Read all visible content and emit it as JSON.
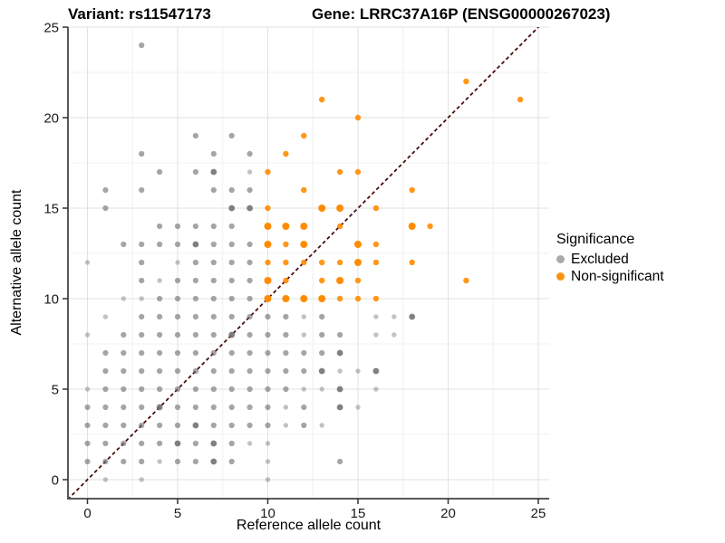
{
  "header": {
    "title_left": "Variant: rs11547173",
    "title_right": "Gene: LRRC37A16P (ENSG00000267023)"
  },
  "chart_data": {
    "type": "scatter",
    "xlabel": "Reference allele count",
    "ylabel": "Alternative allele count",
    "xlim": [
      -1.1,
      25.4
    ],
    "ylim": [
      -1.05,
      25.0
    ],
    "xticks": [
      0,
      5,
      10,
      15,
      20,
      25
    ],
    "yticks": [
      0,
      5,
      10,
      15,
      20,
      25
    ],
    "minor_ticks": [
      2.5,
      7.5,
      12.5,
      17.5,
      22.5
    ],
    "grid": "major+minor",
    "colors": {
      "grid_major": "#e2e2e2",
      "grid_minor": "#f0f0f0",
      "axis_line": "#595959",
      "tick_mark": "#333333",
      "tick_label": "#1a1a1a",
      "identity_line": "#4a0d0d"
    },
    "identity_line": {
      "type": "y=x",
      "style": "dashed",
      "color": "#4a0d0d"
    },
    "legend": {
      "title": "Significance",
      "position": "right",
      "items": [
        {
          "label": "Excluded",
          "color": "#ababab"
        },
        {
          "label": "Non-significant",
          "color": "#f9950f"
        }
      ]
    },
    "point_variant_legend": "each point is [ref_count, alt_count, shade] where shade 0=light 1=normal 2=dark/large (overplotting)",
    "series": [
      {
        "name": "Excluded",
        "color": "#6e6e6e",
        "alpha": [
          0.42,
          0.62,
          0.88
        ],
        "radius": [
          2.7,
          3.1,
          3.4
        ],
        "points": [
          [
            1,
            0,
            0
          ],
          [
            3,
            0,
            0
          ],
          [
            10,
            0,
            0
          ],
          [
            0,
            1,
            1
          ],
          [
            1,
            1,
            1
          ],
          [
            2,
            1,
            1
          ],
          [
            3,
            1,
            1
          ],
          [
            4,
            1,
            0
          ],
          [
            5,
            1,
            1
          ],
          [
            6,
            1,
            1
          ],
          [
            7,
            1,
            2
          ],
          [
            8,
            1,
            1
          ],
          [
            10,
            1,
            0
          ],
          [
            14,
            1,
            1
          ],
          [
            0,
            2,
            1
          ],
          [
            1,
            2,
            1
          ],
          [
            2,
            2,
            1
          ],
          [
            3,
            2,
            1
          ],
          [
            4,
            2,
            1
          ],
          [
            5,
            2,
            2
          ],
          [
            6,
            2,
            1
          ],
          [
            7,
            2,
            2
          ],
          [
            8,
            2,
            1
          ],
          [
            9,
            2,
            0
          ],
          [
            10,
            2,
            0
          ],
          [
            0,
            3,
            1
          ],
          [
            1,
            3,
            1
          ],
          [
            2,
            3,
            1
          ],
          [
            3,
            3,
            1
          ],
          [
            4,
            3,
            1
          ],
          [
            5,
            3,
            1
          ],
          [
            6,
            3,
            2
          ],
          [
            7,
            3,
            1
          ],
          [
            8,
            3,
            1
          ],
          [
            9,
            3,
            1
          ],
          [
            10,
            3,
            1
          ],
          [
            11,
            3,
            0
          ],
          [
            12,
            3,
            1
          ],
          [
            13,
            3,
            0
          ],
          [
            0,
            4,
            1
          ],
          [
            1,
            4,
            1
          ],
          [
            2,
            4,
            1
          ],
          [
            3,
            4,
            1
          ],
          [
            4,
            4,
            2
          ],
          [
            5,
            4,
            1
          ],
          [
            6,
            4,
            1
          ],
          [
            7,
            4,
            1
          ],
          [
            8,
            4,
            1
          ],
          [
            9,
            4,
            1
          ],
          [
            10,
            4,
            1
          ],
          [
            11,
            4,
            0
          ],
          [
            12,
            4,
            1
          ],
          [
            14,
            4,
            2
          ],
          [
            15,
            4,
            0
          ],
          [
            0,
            5,
            0
          ],
          [
            1,
            5,
            1
          ],
          [
            2,
            5,
            1
          ],
          [
            3,
            5,
            1
          ],
          [
            4,
            5,
            1
          ],
          [
            5,
            5,
            1
          ],
          [
            6,
            5,
            1
          ],
          [
            7,
            5,
            1
          ],
          [
            8,
            5,
            1
          ],
          [
            9,
            5,
            1
          ],
          [
            10,
            5,
            1
          ],
          [
            11,
            5,
            1
          ],
          [
            12,
            5,
            0
          ],
          [
            13,
            5,
            0
          ],
          [
            14,
            5,
            2
          ],
          [
            16,
            5,
            0
          ],
          [
            1,
            6,
            1
          ],
          [
            2,
            6,
            1
          ],
          [
            3,
            6,
            1
          ],
          [
            4,
            6,
            1
          ],
          [
            5,
            6,
            1
          ],
          [
            6,
            6,
            1
          ],
          [
            7,
            6,
            1
          ],
          [
            8,
            6,
            1
          ],
          [
            9,
            6,
            1
          ],
          [
            10,
            6,
            1
          ],
          [
            11,
            6,
            1
          ],
          [
            12,
            6,
            1
          ],
          [
            13,
            6,
            2
          ],
          [
            14,
            6,
            0
          ],
          [
            15,
            6,
            0
          ],
          [
            16,
            6,
            2
          ],
          [
            1,
            7,
            1
          ],
          [
            2,
            7,
            1
          ],
          [
            3,
            7,
            1
          ],
          [
            4,
            7,
            1
          ],
          [
            5,
            7,
            1
          ],
          [
            6,
            7,
            1
          ],
          [
            7,
            7,
            1
          ],
          [
            8,
            7,
            1
          ],
          [
            9,
            7,
            1
          ],
          [
            10,
            7,
            1
          ],
          [
            11,
            7,
            1
          ],
          [
            12,
            7,
            1
          ],
          [
            13,
            7,
            1
          ],
          [
            14,
            7,
            2
          ],
          [
            0,
            8,
            0
          ],
          [
            2,
            8,
            1
          ],
          [
            3,
            8,
            1
          ],
          [
            4,
            8,
            1
          ],
          [
            5,
            8,
            1
          ],
          [
            6,
            8,
            1
          ],
          [
            7,
            8,
            1
          ],
          [
            8,
            8,
            2
          ],
          [
            9,
            8,
            1
          ],
          [
            10,
            8,
            1
          ],
          [
            11,
            8,
            1
          ],
          [
            12,
            8,
            0
          ],
          [
            13,
            8,
            1
          ],
          [
            14,
            8,
            1
          ],
          [
            16,
            8,
            0
          ],
          [
            17,
            8,
            0
          ],
          [
            1,
            9,
            0
          ],
          [
            3,
            9,
            1
          ],
          [
            4,
            9,
            1
          ],
          [
            5,
            9,
            1
          ],
          [
            6,
            9,
            1
          ],
          [
            7,
            9,
            1
          ],
          [
            8,
            9,
            1
          ],
          [
            9,
            9,
            1
          ],
          [
            10,
            9,
            1
          ],
          [
            11,
            9,
            1
          ],
          [
            12,
            9,
            0
          ],
          [
            13,
            9,
            1
          ],
          [
            16,
            9,
            0
          ],
          [
            17,
            9,
            0
          ],
          [
            18,
            9,
            2
          ],
          [
            2,
            10,
            0
          ],
          [
            3,
            10,
            0
          ],
          [
            4,
            10,
            1
          ],
          [
            5,
            10,
            1
          ],
          [
            6,
            10,
            1
          ],
          [
            7,
            10,
            1
          ],
          [
            8,
            10,
            1
          ],
          [
            9,
            10,
            1
          ],
          [
            3,
            11,
            1
          ],
          [
            4,
            11,
            0
          ],
          [
            5,
            11,
            1
          ],
          [
            6,
            11,
            1
          ],
          [
            7,
            11,
            1
          ],
          [
            8,
            11,
            1
          ],
          [
            9,
            11,
            1
          ],
          [
            0,
            12,
            0
          ],
          [
            3,
            12,
            1
          ],
          [
            5,
            12,
            0
          ],
          [
            6,
            12,
            1
          ],
          [
            7,
            12,
            1
          ],
          [
            8,
            12,
            1
          ],
          [
            9,
            12,
            1
          ],
          [
            2,
            13,
            1
          ],
          [
            3,
            13,
            1
          ],
          [
            4,
            13,
            1
          ],
          [
            5,
            13,
            1
          ],
          [
            6,
            13,
            2
          ],
          [
            7,
            13,
            1
          ],
          [
            8,
            13,
            1
          ],
          [
            9,
            13,
            1
          ],
          [
            4,
            14,
            1
          ],
          [
            5,
            14,
            1
          ],
          [
            6,
            14,
            1
          ],
          [
            7,
            14,
            1
          ],
          [
            8,
            14,
            1
          ],
          [
            1,
            15,
            1
          ],
          [
            8,
            15,
            2
          ],
          [
            9,
            15,
            2
          ],
          [
            1,
            16,
            1
          ],
          [
            3,
            16,
            1
          ],
          [
            7,
            16,
            1
          ],
          [
            8,
            16,
            1
          ],
          [
            9,
            16,
            1
          ],
          [
            4,
            17,
            1
          ],
          [
            6,
            17,
            1
          ],
          [
            7,
            17,
            2
          ],
          [
            9,
            17,
            0
          ],
          [
            3,
            18,
            1
          ],
          [
            7,
            18,
            1
          ],
          [
            9,
            18,
            1
          ],
          [
            6,
            19,
            1
          ],
          [
            8,
            19,
            1
          ],
          [
            3,
            24,
            1
          ]
        ]
      },
      {
        "name": "Non-significant",
        "color": "#ff8c00",
        "alpha": [
          0.75,
          0.9,
          1.0
        ],
        "radius": [
          2.8,
          3.2,
          4.0
        ],
        "points": [
          [
            10,
            10,
            2
          ],
          [
            11,
            10,
            2
          ],
          [
            12,
            10,
            2
          ],
          [
            13,
            10,
            2
          ],
          [
            14,
            10,
            1
          ],
          [
            15,
            10,
            1
          ],
          [
            16,
            10,
            1
          ],
          [
            10,
            11,
            2
          ],
          [
            11,
            11,
            1
          ],
          [
            13,
            11,
            1
          ],
          [
            14,
            11,
            2
          ],
          [
            15,
            11,
            1
          ],
          [
            21,
            11,
            1
          ],
          [
            10,
            12,
            1
          ],
          [
            11,
            12,
            1
          ],
          [
            12,
            12,
            1
          ],
          [
            13,
            12,
            1
          ],
          [
            14,
            12,
            1
          ],
          [
            15,
            12,
            2
          ],
          [
            16,
            12,
            1
          ],
          [
            18,
            12,
            1
          ],
          [
            10,
            13,
            2
          ],
          [
            11,
            13,
            1
          ],
          [
            12,
            13,
            2
          ],
          [
            15,
            13,
            2
          ],
          [
            16,
            13,
            1
          ],
          [
            10,
            14,
            2
          ],
          [
            11,
            14,
            2
          ],
          [
            12,
            14,
            2
          ],
          [
            14,
            14,
            1
          ],
          [
            18,
            14,
            2
          ],
          [
            19,
            14,
            1
          ],
          [
            10,
            15,
            1
          ],
          [
            13,
            15,
            2
          ],
          [
            14,
            15,
            2
          ],
          [
            16,
            15,
            1
          ],
          [
            12,
            16,
            1
          ],
          [
            18,
            16,
            1
          ],
          [
            10,
            17,
            1
          ],
          [
            14,
            17,
            1
          ],
          [
            15,
            17,
            1
          ],
          [
            11,
            18,
            1
          ],
          [
            12,
            19,
            1
          ],
          [
            15,
            20,
            1
          ],
          [
            13,
            21,
            1
          ],
          [
            24,
            21,
            1
          ],
          [
            21,
            22,
            1
          ]
        ]
      }
    ]
  }
}
